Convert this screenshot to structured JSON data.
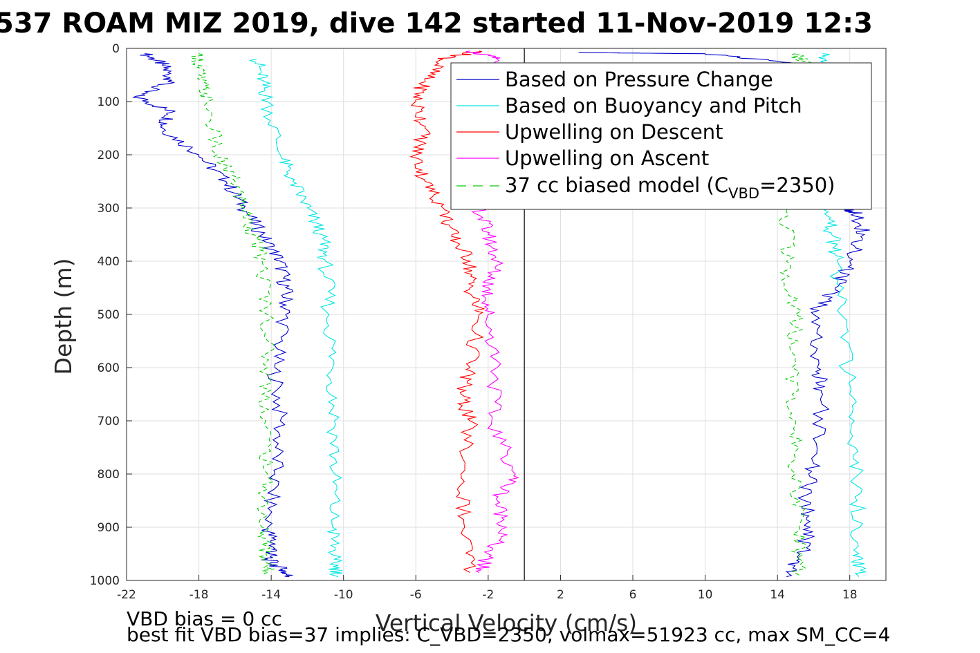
{
  "chart_data": {
    "type": "line",
    "title": "537 ROAM MIZ 2019, dive 142 started 11-Nov-2019 12:3",
    "xlabel": "Vertical Velocity (cm/s)",
    "ylabel": "Depth (m)",
    "xlim": [
      -22,
      20
    ],
    "ylim": [
      0,
      1000
    ],
    "y_reversed": true,
    "xticks": [
      -22,
      -18,
      -14,
      -10,
      -6,
      -2,
      2,
      6,
      10,
      14,
      18
    ],
    "xtick_labels": [
      "-22",
      "-18",
      "-14",
      "-10",
      "-6",
      "-2",
      "2",
      "6",
      "10",
      "14",
      "18"
    ],
    "yticks": [
      0,
      100,
      200,
      300,
      400,
      500,
      600,
      700,
      800,
      900,
      1000
    ],
    "ytick_labels": [
      "0",
      "100",
      "200",
      "300",
      "400",
      "500",
      "600",
      "700",
      "800",
      "900",
      "1000"
    ],
    "grid": true,
    "zero_line_x": 0,
    "legend_position": "top-right",
    "legend": {
      "item1": "Based on Pressure Change",
      "item2": "Based on Buoyancy and Pitch",
      "item3": "Upwelling on Descent",
      "item4": "Upwelling on Ascent",
      "item5_prefix": "37 cc biased model (C",
      "item5_sub": "VBD",
      "item5_suffix": "=2350)"
    },
    "series": [
      {
        "color": "#0000cc",
        "style": "solid",
        "x": [
          -21,
          -20,
          -19.5,
          -21.5,
          -19.5,
          -20,
          -18,
          -16.5,
          -15.5,
          -14.5,
          -13.5,
          -13.2,
          -13.2,
          -13.8,
          -13.5,
          -13.8,
          -14.2,
          -13.8,
          -14.2,
          -13.4,
          -13
        ],
        "y": [
          10,
          30,
          60,
          90,
          120,
          150,
          200,
          250,
          300,
          350,
          400,
          450,
          500,
          600,
          700,
          800,
          900,
          940,
          960,
          980,
          993
        ]
      },
      {
        "color": "#0000cc",
        "style": "solid",
        "x": [
          14.5,
          15.2,
          15.8,
          15.5,
          16,
          16.5,
          16.2,
          16,
          17.2,
          18,
          18.8,
          18.3,
          17.8,
          17.5,
          15.5,
          10,
          3
        ],
        "y": [
          993,
          960,
          900,
          850,
          780,
          650,
          600,
          500,
          450,
          400,
          350,
          310,
          300,
          40,
          30,
          10,
          8
        ]
      },
      {
        "color": "#00e5e5",
        "style": "solid",
        "x": [
          -14.8,
          -14.5,
          -14.2,
          -13.5,
          -12.8,
          -12,
          -11.2,
          -11,
          -10.8,
          -10.6,
          -10.5,
          -10.5,
          -10.6,
          -10.5,
          -10.3
        ],
        "y": [
          20,
          60,
          100,
          200,
          250,
          300,
          350,
          400,
          500,
          600,
          700,
          800,
          900,
          960,
          993
        ]
      },
      {
        "color": "#00e5e5",
        "style": "solid",
        "x": [
          18.5,
          18.5,
          18.4,
          18.3,
          18.0,
          17.5,
          17.3,
          17.0,
          16.8,
          16.2,
          16.5
        ],
        "y": [
          993,
          950,
          850,
          750,
          650,
          500,
          400,
          350,
          300,
          30,
          10
        ]
      },
      {
        "color": "#ff0000",
        "style": "solid",
        "x": [
          -2.5,
          -4.5,
          -5.5,
          -6,
          -5.5,
          -6,
          -5.5,
          -4.5,
          -4,
          -3,
          -3,
          -2.5,
          -3,
          -3.5,
          -3,
          -3.5,
          -3.3,
          -3
        ],
        "y": [
          5,
          20,
          60,
          100,
          150,
          200,
          250,
          300,
          350,
          400,
          450,
          500,
          600,
          650,
          700,
          800,
          900,
          985
        ]
      },
      {
        "color": "#ff00ff",
        "style": "solid",
        "x": [
          -3,
          -1.5,
          -2.5,
          -3,
          -3.5,
          -2.5,
          -2,
          -1.5,
          -2,
          -2,
          -1.5,
          -1.8,
          -0.5,
          -1.5,
          -1,
          -2,
          -2.5
        ],
        "y": [
          5,
          20,
          60,
          100,
          200,
          300,
          350,
          400,
          450,
          500,
          600,
          700,
          800,
          850,
          900,
          950,
          985
        ]
      },
      {
        "color": "#00cc00",
        "style": "dashed",
        "x": [
          -18,
          -18,
          -17.5,
          -17,
          -16,
          -15.5,
          -15,
          -14.5,
          -14.2,
          -14.2,
          -14.3,
          -14.2,
          -14.5,
          -14.3,
          -14.2
        ],
        "y": [
          10,
          50,
          100,
          200,
          250,
          300,
          350,
          400,
          500,
          600,
          700,
          800,
          900,
          950,
          990
        ]
      },
      {
        "color": "#00cc00",
        "style": "dashed",
        "x": [
          15.2,
          15.2,
          15.0,
          15.0,
          14.8,
          15.0,
          14.5,
          14.5,
          15.5,
          15.0
        ],
        "y": [
          990,
          900,
          800,
          700,
          600,
          500,
          400,
          300,
          30,
          10
        ]
      }
    ]
  },
  "notes": {
    "line1": "VBD bias = 0 cc",
    "line2": "best fit VBD bias=37 implies: C_VBD=2350, volmax=51923 cc, max SM_CC=4"
  }
}
